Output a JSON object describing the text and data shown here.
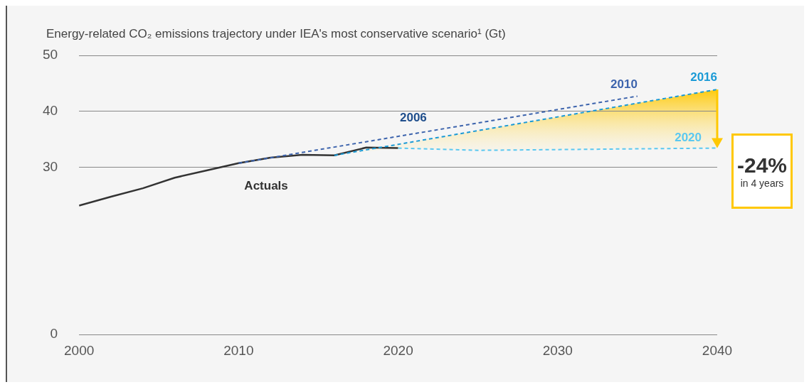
{
  "chart_data": {
    "type": "line",
    "title": "Energy-related CO₂ emissions trajectory under IEA's most conservative scenario¹ (Gt)",
    "xlim": [
      2000,
      2040
    ],
    "xticks": [
      2000,
      2010,
      2020,
      2030,
      2040
    ],
    "ylim": [
      0,
      50
    ],
    "yticks": [
      0,
      30,
      40,
      50
    ],
    "grid": "y",
    "legend": false,
    "marker": "none",
    "series": [
      {
        "name": "Actuals",
        "color": "#333333",
        "line_style": "solid",
        "x": [
          2000,
          2002,
          2004,
          2006,
          2008,
          2010,
          2012,
          2014,
          2016,
          2018,
          2020
        ],
        "values": [
          23.1,
          24.7,
          26.2,
          28.1,
          29.4,
          30.7,
          31.7,
          32.2,
          32.1,
          33.5,
          33.4
        ]
      },
      {
        "name": "2010",
        "color": "#3d64ad",
        "line_style": "dashed",
        "x": [
          2010,
          2035
        ],
        "values": [
          30.7,
          42.7
        ]
      },
      {
        "name": "2016",
        "color": "#1a9ad6",
        "line_style": "dashed",
        "x": [
          2016,
          2040
        ],
        "values": [
          32.1,
          43.9
        ]
      },
      {
        "name": "2020",
        "color": "#5bc8f0",
        "line_style": "dashed",
        "x": [
          2020,
          2025,
          2040
        ],
        "values": [
          33.4,
          33.0,
          33.4
        ]
      }
    ],
    "annotations": [
      "2006",
      "-24%",
      "in 4 years"
    ]
  }
}
